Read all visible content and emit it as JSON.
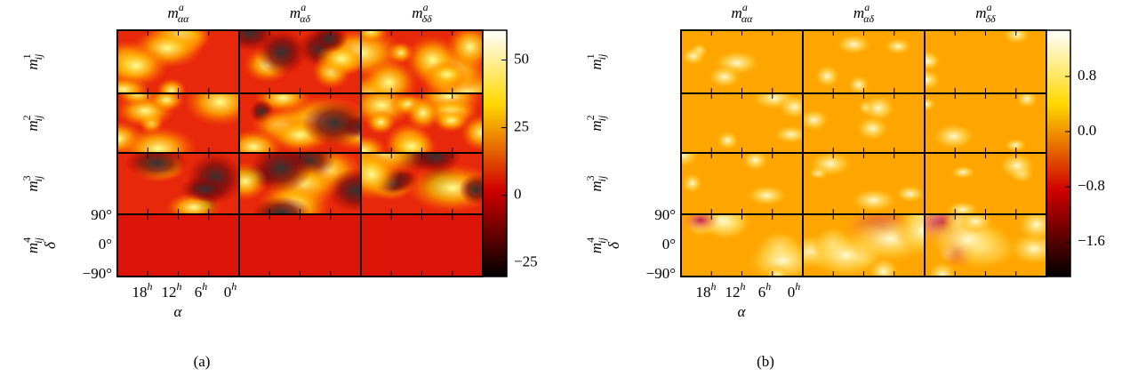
{
  "chart_data": [
    {
      "type": "heatmap",
      "caption": "(a)",
      "columns": [
        {
          "base": "m",
          "sup": "a",
          "sub": "αα"
        },
        {
          "base": "m",
          "sup": "a",
          "sub": "αδ"
        },
        {
          "base": "m",
          "sup": "a",
          "sub": "δδ"
        }
      ],
      "rows": [
        {
          "base": "m",
          "sup": "1",
          "sub": "ij"
        },
        {
          "base": "m",
          "sup": "2",
          "sub": "ij"
        },
        {
          "base": "m",
          "sup": "3",
          "sub": "ij"
        },
        {
          "base": "m",
          "sup": "4",
          "sub": "ij"
        }
      ],
      "ylabel": "δ",
      "ytick_labels": [
        "90°",
        "0°",
        "−90°"
      ],
      "xlabel": "α",
      "xtick_labels": [
        {
          "base": "18",
          "sup": "h"
        },
        {
          "base": "12",
          "sup": "h"
        },
        {
          "base": "6",
          "sup": "h"
        },
        {
          "base": "0",
          "sup": "h"
        }
      ],
      "colorbar": {
        "ylim": [
          -30,
          61
        ],
        "yticks": [
          50,
          25,
          0,
          {
            "value": -25,
            "label": "−25"
          }
        ]
      }
    },
    {
      "type": "heatmap",
      "caption": "(b)",
      "columns": [
        {
          "base": "m",
          "sup": "a",
          "sub": "αα"
        },
        {
          "base": "m",
          "sup": "a",
          "sub": "αδ"
        },
        {
          "base": "m",
          "sup": "a",
          "sub": "δδ"
        }
      ],
      "rows": [
        {
          "base": "m",
          "sup": "1",
          "sub": "ij"
        },
        {
          "base": "m",
          "sup": "2",
          "sub": "ij"
        },
        {
          "base": "m",
          "sup": "3",
          "sub": "ij"
        },
        {
          "base": "m",
          "sup": "4",
          "sub": "ij"
        }
      ],
      "ylabel": "δ",
      "ytick_labels": [
        "90°",
        "0°",
        "−90°"
      ],
      "xlabel": "α",
      "xtick_labels": [
        {
          "base": "18",
          "sup": "h"
        },
        {
          "base": "12",
          "sup": "h"
        },
        {
          "base": "6",
          "sup": "h"
        },
        {
          "base": "0",
          "sup": "h"
        }
      ],
      "colorbar": {
        "ylim": [
          -2.1,
          1.47
        ],
        "yticks": [
          {
            "value": 0.8,
            "label": "0.8"
          },
          {
            "value": 0,
            "label": "0.0"
          },
          {
            "value": -0.8,
            "label": "−0.8"
          },
          {
            "value": -1.6,
            "label": "−1.6"
          }
        ]
      }
    }
  ]
}
